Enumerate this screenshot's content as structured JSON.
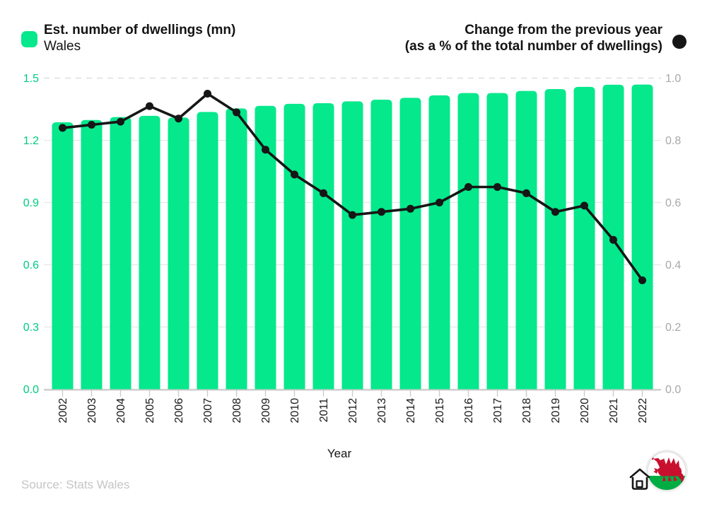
{
  "legend_left": {
    "title": "Est. number of dwellings (mn)",
    "subtitle": "Wales"
  },
  "legend_right": {
    "title_line1": "Change from the previous year",
    "title_line2": "(as a % of the total number of dwellings)"
  },
  "x_axis": {
    "label": "Year"
  },
  "footer": {
    "source": "Source: Stats Wales"
  },
  "icons": {
    "marker": "black-circle-marker",
    "logo": "house-icon + welsh-flag-badge"
  },
  "colors": {
    "bar_green": "#05e88c",
    "left_tick_labels": "#00cc80",
    "line_black": "#161616",
    "right_tick_labels": "#a8a8a8",
    "grid_solid": "#e5e5e5",
    "grid_dashed": "#d8d8d8",
    "axis_line": "#c9c9c9",
    "year_labels": "#1a1a1a",
    "source_text": "#c5c5c5",
    "flag_red": "#c8102e",
    "flag_green": "#00ad43"
  },
  "chart_data": {
    "type": "bar",
    "subtype": "dual-axis bar + line",
    "title": "Est. number of dwellings (mn) — Wales / Change from the previous year (as a % of the total number of dwellings)",
    "xlabel": "Year",
    "grid": "horizontal gridlines on; top gridline dashed",
    "legend_position": "top",
    "categories": [
      "2002",
      "2003",
      "2004",
      "2005",
      "2006",
      "2007",
      "2008",
      "2009",
      "2010",
      "2011",
      "2012",
      "2013",
      "2014",
      "2015",
      "2016",
      "2017",
      "2018",
      "2019",
      "2020",
      "2021",
      "2022"
    ],
    "series": [
      {
        "name": "Est. number of dwellings (mn)",
        "type": "bar",
        "axis": "left",
        "values": [
          1.287,
          1.298,
          1.312,
          1.318,
          1.31,
          1.337,
          1.354,
          1.366,
          1.376,
          1.379,
          1.388,
          1.396,
          1.405,
          1.417,
          1.428,
          1.428,
          1.438,
          1.447,
          1.458,
          1.468,
          1.469
        ]
      },
      {
        "name": "Change from the previous year (as a % of the total number of dwellings)",
        "type": "line",
        "axis": "right",
        "values": [
          0.84,
          0.85,
          0.86,
          0.91,
          0.87,
          0.95,
          0.89,
          0.77,
          0.69,
          0.63,
          0.56,
          0.57,
          0.58,
          0.6,
          0.65,
          0.65,
          0.63,
          0.57,
          0.59,
          0.48,
          0.35
        ]
      }
    ],
    "left_axis": {
      "ticks": [
        "0.0",
        "0.3",
        "0.6",
        "0.9",
        "1.2",
        "1.5"
      ],
      "range": [
        0,
        1.5
      ]
    },
    "right_axis": {
      "ticks": [
        "0.0",
        "0.2",
        "0.4",
        "0.6",
        "0.8",
        "1.0"
      ],
      "range": [
        0,
        1.0
      ]
    }
  }
}
